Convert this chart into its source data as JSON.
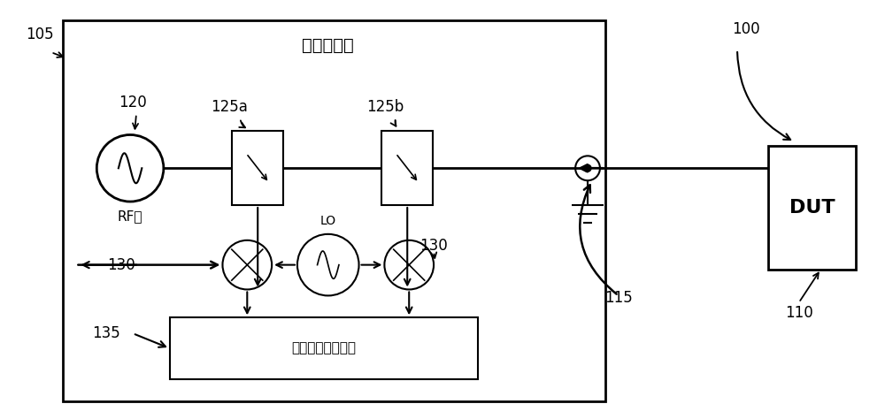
{
  "bg_color": "#ffffff",
  "fig_width": 10.0,
  "fig_height": 4.74,
  "dpi": 100,
  "title_text": "矢量反射计",
  "detector_label": "振幅和相位检测器",
  "rf_label": "RF源",
  "dut_label": "DUT",
  "labels_105": "105",
  "labels_120": "120",
  "labels_125a": "125a",
  "labels_125b": "125b",
  "labels_130": "130",
  "labels_135": "135",
  "labels_115": "115",
  "labels_100": "100",
  "labels_110": "110",
  "labels_LO": "LO"
}
